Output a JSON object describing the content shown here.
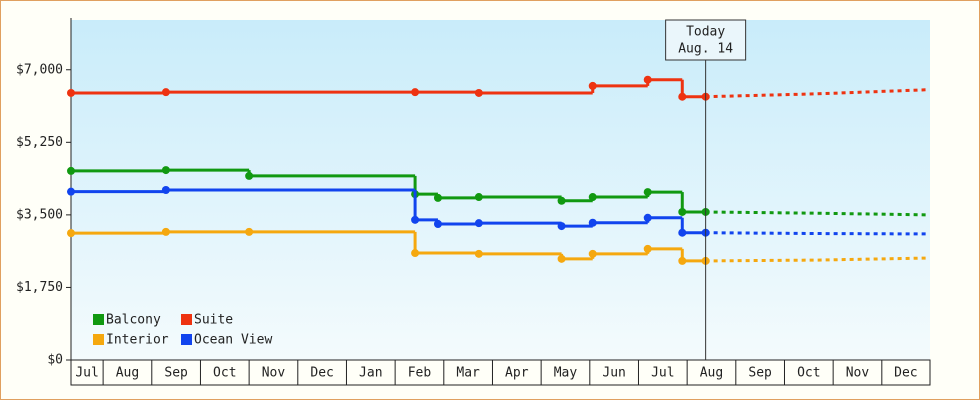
{
  "chart_data": {
    "type": "step-line",
    "categories": [
      "Jul",
      "Aug",
      "Sep",
      "Oct",
      "Nov",
      "Dec",
      "Jan",
      "Feb",
      "Mar",
      "Apr",
      "May",
      "Jun",
      "Jul",
      "Aug",
      "Sep",
      "Oct",
      "Nov",
      "Dec"
    ],
    "xlim": [
      0.34,
      17.99
    ],
    "ylim": [
      0,
      8200
    ],
    "yticks": [
      {
        "value": 0,
        "label": "$0"
      },
      {
        "value": 1750,
        "label": "$1,750"
      },
      {
        "value": 3500,
        "label": "$3,500"
      },
      {
        "value": 5250,
        "label": "$5,250"
      },
      {
        "value": 7000,
        "label": "$7,000"
      }
    ],
    "annotation": {
      "x": 13.38,
      "lines": [
        "Today",
        "Aug. 14"
      ]
    },
    "legend": "bottom-left",
    "series": [
      {
        "name": "Balcony",
        "color": "#119911",
        "x": [
          0.34,
          2.29,
          4.0,
          7.41,
          7.88,
          8.72,
          10.42,
          11.06,
          12.19,
          12.9,
          13.38
        ],
        "values": [
          4560,
          4580,
          4440,
          4000,
          3910,
          3930,
          3840,
          3930,
          4050,
          3570,
          3570
        ],
        "forecast_x": [
          13.38,
          15.68,
          17.98
        ],
        "forecast_values": [
          3570,
          3540,
          3500
        ]
      },
      {
        "name": "Suite",
        "color": "#ee3311",
        "x": [
          0.34,
          2.29,
          7.41,
          8.72,
          11.06,
          12.19,
          12.9,
          13.38
        ],
        "values": [
          6440,
          6460,
          6460,
          6440,
          6610,
          6760,
          6350,
          6350
        ],
        "forecast_x": [
          13.38,
          15.68,
          17.98
        ],
        "forecast_values": [
          6350,
          6420,
          6520
        ]
      },
      {
        "name": "Interior",
        "color": "#f5a80f",
        "x": [
          0.34,
          2.29,
          4.0,
          7.41,
          8.72,
          10.42,
          11.06,
          12.19,
          12.9,
          13.38
        ],
        "values": [
          3060,
          3090,
          3090,
          2580,
          2560,
          2440,
          2560,
          2680,
          2390,
          2390
        ],
        "forecast_x": [
          13.38,
          15.68,
          17.98
        ],
        "forecast_values": [
          2390,
          2410,
          2460
        ]
      },
      {
        "name": "Ocean View",
        "color": "#1144ee",
        "x": [
          0.34,
          2.29,
          7.41,
          7.88,
          8.72,
          10.42,
          11.06,
          12.19,
          12.9,
          13.38
        ],
        "values": [
          4060,
          4100,
          3380,
          3280,
          3300,
          3230,
          3310,
          3430,
          3070,
          3070
        ],
        "forecast_x": [
          13.38,
          15.68,
          17.98
        ],
        "forecast_values": [
          3070,
          3050,
          3040
        ]
      }
    ]
  }
}
